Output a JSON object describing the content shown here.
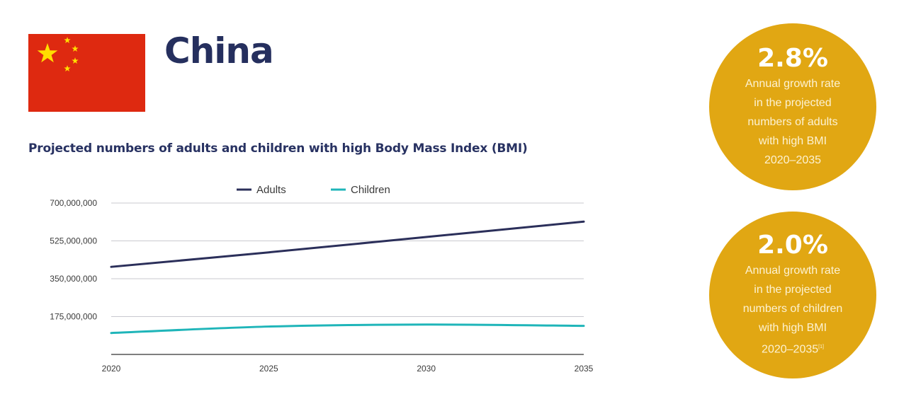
{
  "header": {
    "country": "China",
    "flag_colors": {
      "field": "#de2910",
      "stars": "#ffde00"
    }
  },
  "chart_title": "Projected numbers of adults and children with high Body Mass Index (BMI)",
  "chart_data": {
    "type": "line",
    "title": "Projected numbers of adults and children with high Body Mass Index (BMI)",
    "xlabel": "",
    "ylabel": "",
    "x": [
      2020,
      2025,
      2030,
      2035
    ],
    "x_tick_labels": [
      "2020",
      "2025",
      "2030",
      "2035"
    ],
    "ylim": [
      0,
      700000000
    ],
    "y_ticks": [
      175000000,
      350000000,
      525000000,
      700000000
    ],
    "y_tick_labels": [
      "175,000,000",
      "350,000,000",
      "525,000,000",
      "700,000,000"
    ],
    "series": [
      {
        "name": "Adults",
        "color": "#2b2f5a",
        "values": [
          405000000,
          472000000,
          543000000,
          614000000
        ]
      },
      {
        "name": "Children",
        "color": "#1fb5b9",
        "values": [
          99000000,
          129000000,
          138000000,
          132000000
        ]
      }
    ],
    "grid": true,
    "legend_position": "top-center"
  },
  "stats": [
    {
      "value": "2.8%",
      "lines": [
        "Annual growth rate",
        "in the projected",
        "numbers of adults",
        "with high BMI",
        "2020–2035"
      ],
      "footnote": ""
    },
    {
      "value": "2.0%",
      "lines": [
        "Annual growth rate",
        "in  the projected",
        "numbers of children",
        "with high BMI",
        "2020–2035"
      ],
      "footnote": "[1]"
    }
  ],
  "colors": {
    "accent_circle": "#e1a713",
    "title": "#283262"
  }
}
